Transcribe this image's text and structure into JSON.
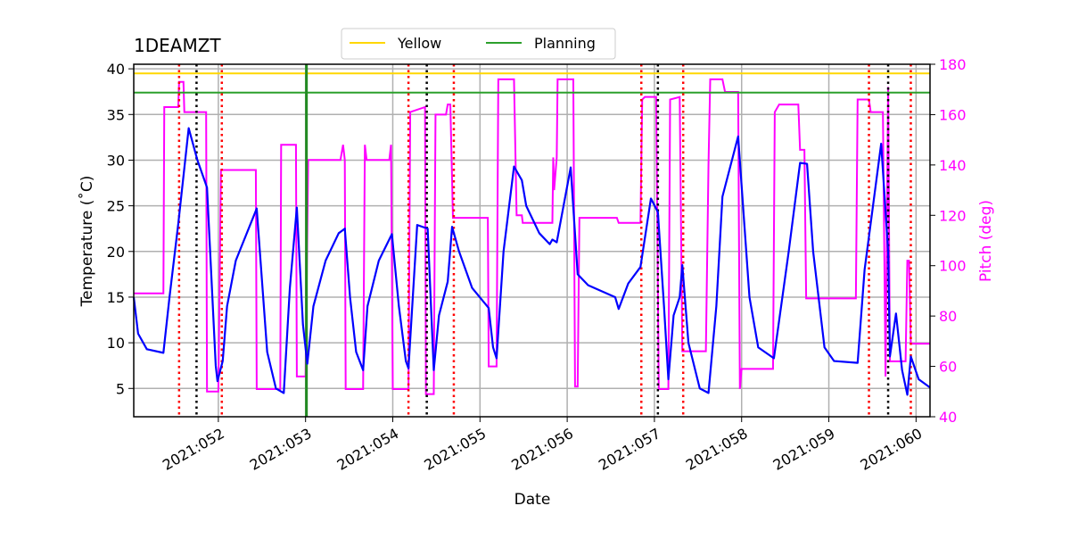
{
  "chart_data": {
    "type": "line",
    "title": "1DEAMZT",
    "xlabel": "Date",
    "ylabel": "Temperature ($^\\circ$C)",
    "ylabel_display": "Temperature (˚C)",
    "y2label": "Pitch (deg)",
    "xlim": [
      51.03,
      60.16
    ],
    "ylim": [
      1.9,
      40.5
    ],
    "y2lim": [
      40,
      180
    ],
    "grid": true,
    "legend": {
      "placement": "top-center",
      "entries": [
        {
          "label": "Yellow",
          "color": "#ffd700"
        },
        {
          "label": "Planning",
          "color": "#2ca02c"
        }
      ]
    },
    "x_ticks": [
      {
        "v": 52,
        "label": "2021:052"
      },
      {
        "v": 53,
        "label": "2021:053"
      },
      {
        "v": 54,
        "label": "2021:054"
      },
      {
        "v": 55,
        "label": "2021:055"
      },
      {
        "v": 56,
        "label": "2021:056"
      },
      {
        "v": 57,
        "label": "2021:057"
      },
      {
        "v": 58,
        "label": "2021:058"
      },
      {
        "v": 59,
        "label": "2021:059"
      },
      {
        "v": 60,
        "label": "2021:060"
      }
    ],
    "y_ticks": [
      {
        "v": 5,
        "label": "5"
      },
      {
        "v": 10,
        "label": "10"
      },
      {
        "v": 15,
        "label": "15"
      },
      {
        "v": 20,
        "label": "20"
      },
      {
        "v": 25,
        "label": "25"
      },
      {
        "v": 30,
        "label": "30"
      },
      {
        "v": 35,
        "label": "35"
      },
      {
        "v": 40,
        "label": "40"
      }
    ],
    "y2_ticks": [
      {
        "v": 40,
        "label": "40"
      },
      {
        "v": 60,
        "label": "60"
      },
      {
        "v": 80,
        "label": "80"
      },
      {
        "v": 100,
        "label": "100"
      },
      {
        "v": 120,
        "label": "120"
      },
      {
        "v": 140,
        "label": "140"
      },
      {
        "v": 160,
        "label": "160"
      },
      {
        "v": 180,
        "label": "180"
      }
    ],
    "hlines": [
      {
        "name": "Yellow",
        "y": 39.5,
        "color": "#ffd700"
      },
      {
        "name": "Planning",
        "y": 37.4,
        "color": "#2ca02c"
      }
    ],
    "vlines_red_dotted": [
      51.55,
      52.04,
      54.18,
      54.7,
      56.85,
      57.33,
      59.46,
      59.94
    ],
    "vlines_black_dotted": [
      51.75,
      54.39,
      57.04,
      59.68
    ],
    "vline_green": 53.01,
    "series": [
      {
        "name": "Temperature",
        "axis": "left",
        "color": "#0000ff",
        "x": [
          51.03,
          51.08,
          51.18,
          51.37,
          51.44,
          51.54,
          51.66,
          51.76,
          51.87,
          51.97,
          51.99,
          52.05,
          52.1,
          52.2,
          52.44,
          52.56,
          52.66,
          52.75,
          52.82,
          52.9,
          52.97,
          53.02,
          53.09,
          53.23,
          53.38,
          53.45,
          53.51,
          53.58,
          53.66,
          53.71,
          53.84,
          53.99,
          54.07,
          54.15,
          54.18,
          54.28,
          54.4,
          54.47,
          54.53,
          54.63,
          54.68,
          54.76,
          54.91,
          55.1,
          55.15,
          55.19,
          55.27,
          55.39,
          55.48,
          55.53,
          55.68,
          55.8,
          55.83,
          55.88,
          56.04,
          56.12,
          56.24,
          56.55,
          56.59,
          56.7,
          56.84,
          56.96,
          57.04,
          57.11,
          57.16,
          57.22,
          57.29,
          57.32,
          57.39,
          57.52,
          57.62,
          57.71,
          57.78,
          57.96,
          58.09,
          58.19,
          58.37,
          58.54,
          58.67,
          58.75,
          58.82,
          58.95,
          59.06,
          59.33,
          59.41,
          59.6,
          59.68,
          59.7,
          59.77,
          59.84,
          59.9,
          59.94,
          60.03,
          60.16
        ],
        "y": [
          15,
          11,
          9.3,
          8.9,
          15,
          23,
          33.5,
          30,
          27,
          7.5,
          5.8,
          8,
          14,
          19,
          24.7,
          9,
          5,
          4.5,
          16,
          24.8,
          12,
          7.7,
          14,
          19,
          22,
          22.5,
          15,
          9,
          7,
          14,
          19,
          21.9,
          14,
          8,
          7.2,
          22.9,
          22.5,
          7,
          13,
          16.7,
          22.7,
          20,
          16,
          13.8,
          9.5,
          8.3,
          20,
          29.3,
          27.8,
          25,
          22,
          20.8,
          21.3,
          21,
          29.2,
          17.5,
          16.3,
          15,
          13.7,
          16.5,
          18.3,
          25.8,
          24.3,
          14,
          6,
          13,
          15,
          18.5,
          10,
          5,
          4.5,
          14,
          26,
          32.6,
          15,
          9.5,
          8.3,
          20,
          29.7,
          29.6,
          20,
          9.5,
          8,
          7.8,
          18,
          31.8,
          20,
          8.5,
          13.2,
          7,
          4.3,
          8.5,
          6,
          5.1
        ]
      },
      {
        "name": "Pitch",
        "axis": "right",
        "color": "#ff00ff",
        "x": [
          51.03,
          51.37,
          51.38,
          51.54,
          51.55,
          51.6,
          51.61,
          51.86,
          51.87,
          52.0,
          52.03,
          52.43,
          52.44,
          52.71,
          52.72,
          52.89,
          52.9,
          53.0,
          53.03,
          53.4,
          53.43,
          53.45,
          53.46,
          53.66,
          53.68,
          53.7,
          53.96,
          53.98,
          54.0,
          54.18,
          54.2,
          54.37,
          54.38,
          54.47,
          54.49,
          54.61,
          54.63,
          54.66,
          54.69,
          55.09,
          55.1,
          55.19,
          55.21,
          55.39,
          55.42,
          55.48,
          55.49,
          55.83,
          55.84,
          55.85,
          55.88,
          55.89,
          56.07,
          56.09,
          56.12,
          56.14,
          56.57,
          56.59,
          56.84,
          56.86,
          56.89,
          57.02,
          57.05,
          57.16,
          57.18,
          57.29,
          57.32,
          57.59,
          57.62,
          57.64,
          57.78,
          57.81,
          57.96,
          57.98,
          58.0,
          58.36,
          58.38,
          58.43,
          58.65,
          58.67,
          58.72,
          58.74,
          59.31,
          59.33,
          59.46,
          59.48,
          59.62,
          59.65,
          59.68,
          59.7,
          59.72,
          59.88,
          59.9,
          59.92,
          59.94,
          60.16
        ],
        "y": [
          89,
          89,
          163,
          163,
          173,
          173,
          161,
          161,
          50,
          50,
          138,
          138,
          51,
          51,
          148,
          148,
          56,
          56,
          142,
          142,
          148,
          142,
          51,
          51,
          148,
          142,
          142,
          148,
          51,
          51,
          161,
          163,
          49,
          49,
          160,
          160,
          164,
          164,
          119,
          119,
          60,
          60,
          174,
          174,
          120,
          120,
          117,
          117,
          143,
          130,
          143,
          174,
          174,
          52,
          52,
          119,
          119,
          117,
          117,
          166,
          167,
          167,
          51,
          51,
          166,
          167,
          66,
          66,
          140,
          174,
          174,
          169,
          169,
          51,
          59,
          59,
          161,
          164,
          164,
          146,
          146,
          87,
          87,
          166,
          166,
          161,
          161,
          56,
          171,
          62,
          62,
          62,
          102,
          102,
          69,
          69
        ]
      }
    ]
  }
}
